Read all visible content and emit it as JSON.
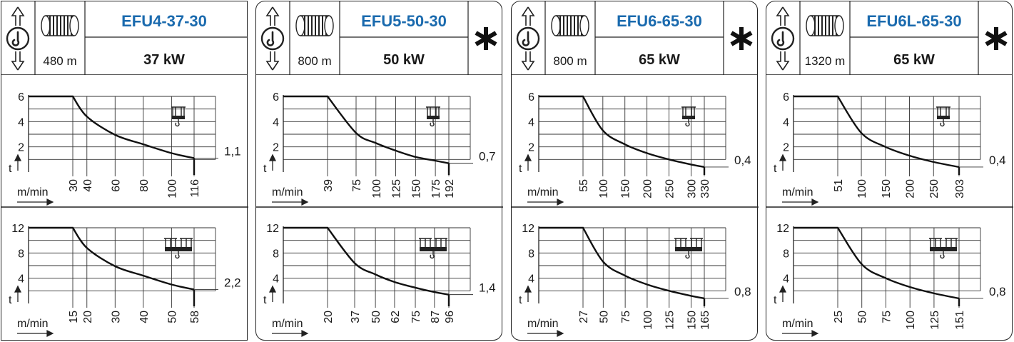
{
  "colors": {
    "title": "#1a6aae",
    "ink": "#1a1a1a",
    "grid": "#333333"
  },
  "icons": [
    "hook-lift-icon",
    "rope-drum-icon",
    "single-reeving-hook-icon",
    "double-reeving-hook-icon",
    "asterisk-icon"
  ],
  "cards": [
    {
      "model": "EFU4-37-30",
      "rope": "480 m",
      "power": "37 kW",
      "asterisk": false,
      "charts": [
        {
          "reeving": "single",
          "y_label": "t",
          "x_label": "m/min",
          "y_ticks": [
            "6",
            "4",
            "2"
          ],
          "y_tick_values": [
            6,
            4,
            2
          ],
          "x_ticks": [
            "30",
            "40",
            "60",
            "80",
            "100",
            "116"
          ],
          "x_tick_values": [
            30,
            40,
            60,
            80,
            100,
            116
          ],
          "end_value_label": "1,1"
        },
        {
          "reeving": "double",
          "y_label": "t",
          "x_label": "m/min",
          "y_ticks": [
            "12",
            "8",
            "4"
          ],
          "y_tick_values": [
            12,
            8,
            4
          ],
          "x_ticks": [
            "15",
            "20",
            "30",
            "40",
            "50",
            "58"
          ],
          "x_tick_values": [
            15,
            20,
            30,
            40,
            50,
            58
          ],
          "end_value_label": "2,2"
        }
      ]
    },
    {
      "model": "EFU5-50-30",
      "rope": "800 m",
      "power": "50 kW",
      "asterisk": true,
      "charts": [
        {
          "reeving": "single",
          "y_label": "t",
          "x_label": "m/min",
          "y_ticks": [
            "6",
            "4",
            "2"
          ],
          "y_tick_values": [
            6,
            4,
            2
          ],
          "x_ticks": [
            "39",
            "75",
            "100",
            "125",
            "150",
            "175",
            "192"
          ],
          "x_tick_values": [
            39,
            75,
            100,
            125,
            150,
            175,
            192
          ],
          "end_value_label": "0,7"
        },
        {
          "reeving": "double",
          "y_label": "t",
          "x_label": "m/min",
          "y_ticks": [
            "12",
            "8",
            "4"
          ],
          "y_tick_values": [
            12,
            8,
            4
          ],
          "x_ticks": [
            "20",
            "37",
            "50",
            "62",
            "75",
            "87",
            "96"
          ],
          "x_tick_values": [
            20,
            37,
            50,
            62,
            75,
            87,
            96
          ],
          "end_value_label": "1,4"
        }
      ]
    },
    {
      "model": "EFU6-65-30",
      "rope": "800 m",
      "power": "65 kW",
      "asterisk": true,
      "charts": [
        {
          "reeving": "single",
          "y_label": "t",
          "x_label": "m/min",
          "y_ticks": [
            "6",
            "4",
            "2"
          ],
          "y_tick_values": [
            6,
            4,
            2
          ],
          "x_ticks": [
            "55",
            "100",
            "150",
            "200",
            "250",
            "300",
            "330"
          ],
          "x_tick_values": [
            55,
            100,
            150,
            200,
            250,
            300,
            330
          ],
          "end_value_label": "0,4"
        },
        {
          "reeving": "double",
          "y_label": "t",
          "x_label": "m/min",
          "y_ticks": [
            "12",
            "8",
            "4"
          ],
          "y_tick_values": [
            12,
            8,
            4
          ],
          "x_ticks": [
            "27",
            "50",
            "75",
            "100",
            "125",
            "150",
            "165"
          ],
          "x_tick_values": [
            27,
            50,
            75,
            100,
            125,
            150,
            165
          ],
          "end_value_label": "0,8"
        }
      ]
    },
    {
      "model": "EFU6L-65-30",
      "rope": "1320 m",
      "power": "65 kW",
      "asterisk": true,
      "charts": [
        {
          "reeving": "single",
          "y_label": "t",
          "x_label": "m/min",
          "y_ticks": [
            "6",
            "4",
            "2"
          ],
          "y_tick_values": [
            6,
            4,
            2
          ],
          "x_ticks": [
            "51",
            "100",
            "150",
            "200",
            "250",
            "303"
          ],
          "x_tick_values": [
            51,
            100,
            150,
            200,
            250,
            303
          ],
          "end_value_label": "0,4"
        },
        {
          "reeving": "double",
          "y_label": "t",
          "x_label": "m/min",
          "y_ticks": [
            "12",
            "8",
            "4"
          ],
          "y_tick_values": [
            12,
            8,
            4
          ],
          "x_ticks": [
            "25",
            "50",
            "75",
            "100",
            "125",
            "151"
          ],
          "x_tick_values": [
            25,
            50,
            75,
            100,
            125,
            151
          ],
          "end_value_label": "0,8"
        }
      ]
    }
  ],
  "chart_data": [
    {
      "type": "line",
      "title": "EFU4-37-30 single reeving",
      "xlabel": "m/min",
      "ylabel": "t",
      "xlim": [
        0,
        116
      ],
      "ylim": [
        0,
        6
      ],
      "grid": true,
      "series": [
        {
          "x": [
            0,
            30,
            40,
            60,
            80,
            100,
            116
          ],
          "y": [
            6,
            6,
            4.4,
            2.95,
            2.2,
            1.5,
            1.1
          ]
        }
      ]
    },
    {
      "type": "line",
      "title": "EFU4-37-30 double reeving",
      "xlabel": "m/min",
      "ylabel": "t",
      "xlim": [
        0,
        58
      ],
      "ylim": [
        0,
        12
      ],
      "grid": true,
      "series": [
        {
          "x": [
            0,
            15,
            20,
            30,
            40,
            50,
            58
          ],
          "y": [
            12,
            12,
            8.8,
            5.9,
            4.4,
            3.0,
            2.2
          ]
        }
      ]
    },
    {
      "type": "line",
      "title": "EFU5-50-30 single reeving",
      "xlabel": "m/min",
      "ylabel": "t",
      "xlim": [
        0,
        192
      ],
      "ylim": [
        0,
        6
      ],
      "grid": true,
      "series": [
        {
          "x": [
            0,
            39,
            75,
            100,
            125,
            150,
            175,
            192
          ],
          "y": [
            6,
            6,
            3.1,
            2.3,
            1.7,
            1.2,
            0.9,
            0.7
          ]
        }
      ]
    },
    {
      "type": "line",
      "title": "EFU5-50-30 double reeving",
      "xlabel": "m/min",
      "ylabel": "t",
      "xlim": [
        0,
        96
      ],
      "ylim": [
        0,
        12
      ],
      "grid": true,
      "series": [
        {
          "x": [
            0,
            20,
            37,
            50,
            62,
            75,
            87,
            96
          ],
          "y": [
            12,
            12,
            6.4,
            4.6,
            3.4,
            2.5,
            1.8,
            1.4
          ]
        }
      ]
    },
    {
      "type": "line",
      "title": "EFU6-65-30 single reeving",
      "xlabel": "m/min",
      "ylabel": "t",
      "xlim": [
        0,
        330
      ],
      "ylim": [
        0,
        6
      ],
      "grid": true,
      "series": [
        {
          "x": [
            0,
            55,
            100,
            150,
            200,
            250,
            300,
            330
          ],
          "y": [
            6,
            6,
            3.3,
            2.2,
            1.5,
            1.0,
            0.6,
            0.4
          ]
        }
      ]
    },
    {
      "type": "line",
      "title": "EFU6-65-30 double reeving",
      "xlabel": "m/min",
      "ylabel": "t",
      "xlim": [
        0,
        165
      ],
      "ylim": [
        0,
        12
      ],
      "grid": true,
      "series": [
        {
          "x": [
            0,
            27,
            50,
            75,
            100,
            125,
            150,
            165
          ],
          "y": [
            12,
            12,
            6.6,
            4.4,
            3.0,
            2.0,
            1.2,
            0.8
          ]
        }
      ]
    },
    {
      "type": "line",
      "title": "EFU6L-65-30 single reeving",
      "xlabel": "m/min",
      "ylabel": "t",
      "xlim": [
        0,
        303
      ],
      "ylim": [
        0,
        6
      ],
      "grid": true,
      "series": [
        {
          "x": [
            0,
            51,
            100,
            150,
            200,
            250,
            303
          ],
          "y": [
            6,
            6,
            3.1,
            2.0,
            1.3,
            0.8,
            0.4
          ]
        }
      ]
    },
    {
      "type": "line",
      "title": "EFU6L-65-30 double reeving",
      "xlabel": "m/min",
      "ylabel": "t",
      "xlim": [
        0,
        151
      ],
      "ylim": [
        0,
        12
      ],
      "grid": true,
      "series": [
        {
          "x": [
            0,
            25,
            50,
            75,
            100,
            125,
            151
          ],
          "y": [
            12,
            12,
            6.2,
            4.0,
            2.6,
            1.6,
            0.8
          ]
        }
      ]
    }
  ]
}
